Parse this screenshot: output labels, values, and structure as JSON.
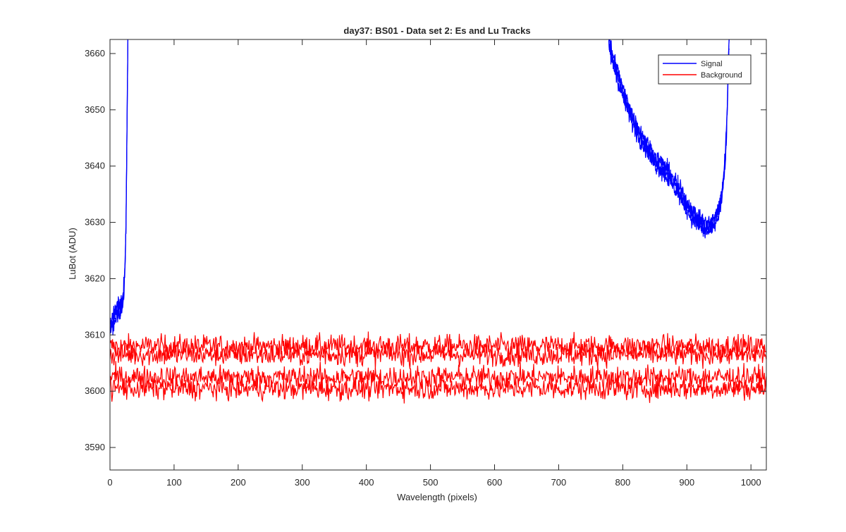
{
  "figure": {
    "background": "#ffffff"
  },
  "chart_data": {
    "type": "line",
    "title": "day37: BS01 - Data set 2: Es and Lu Tracks",
    "xlabel": "Wavelength (pixels)",
    "ylabel": "LuBot (ADU)",
    "xlim": [
      0,
      1024
    ],
    "ylim": [
      3586,
      3662.5
    ],
    "xticks": [
      0,
      100,
      200,
      300,
      400,
      500,
      600,
      700,
      800,
      900,
      1000
    ],
    "yticks": [
      3590,
      3600,
      3610,
      3620,
      3630,
      3640,
      3650,
      3660
    ],
    "grid": false,
    "legend": {
      "placement": "top-right",
      "entries": [
        "Signal",
        "Background"
      ]
    },
    "series": [
      {
        "name": "Signal",
        "color": "#0000ff",
        "traces": 3,
        "noise_amplitude": 1.5,
        "segments": [
          {
            "points": [
              [
                0,
                3611
              ],
              [
                5,
                3613
              ],
              [
                10,
                3614
              ],
              [
                15,
                3614.5
              ],
              [
                20,
                3616
              ],
              [
                22,
                3619
              ],
              [
                24,
                3624
              ],
              [
                25,
                3630
              ],
              [
                26,
                3640
              ],
              [
                27,
                3652
              ],
              [
                28,
                3662.5
              ]
            ]
          },
          {
            "points": [
              [
                778,
                3662.5
              ],
              [
                782,
                3660
              ],
              [
                790,
                3657
              ],
              [
                800,
                3653
              ],
              [
                810,
                3650
              ],
              [
                820,
                3647
              ],
              [
                830,
                3645
              ],
              [
                840,
                3643
              ],
              [
                850,
                3641
              ],
              [
                860,
                3640
              ],
              [
                870,
                3638.5
              ],
              [
                880,
                3637
              ],
              [
                890,
                3635
              ],
              [
                900,
                3633
              ],
              [
                910,
                3631
              ],
              [
                920,
                3630
              ],
              [
                930,
                3629
              ],
              [
                940,
                3629.5
              ],
              [
                950,
                3632
              ],
              [
                955,
                3635
              ],
              [
                960,
                3641
              ],
              [
                963,
                3650
              ],
              [
                966,
                3662.5
              ]
            ]
          }
        ]
      },
      {
        "name": "Background",
        "color": "#ff0000",
        "noise_amplitude": 2,
        "traces_mean": [
          3608,
          3606.5,
          3602.5,
          3600.5
        ],
        "x_range": [
          0,
          1024
        ]
      }
    ]
  }
}
